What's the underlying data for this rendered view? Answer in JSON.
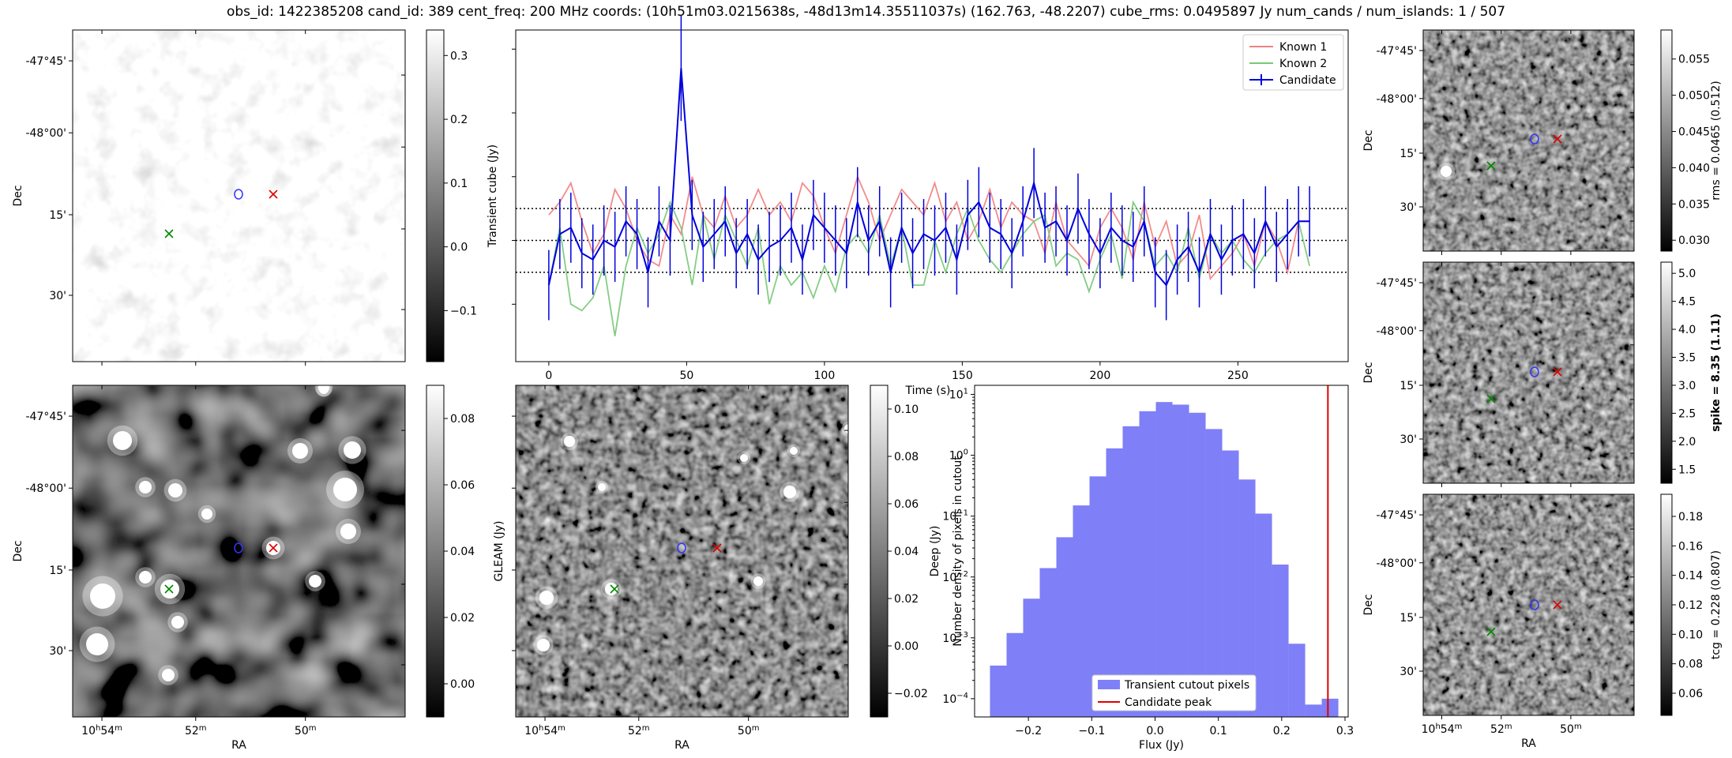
{
  "suptitle": "obs_id: 1422385208 cand_id: 389 cent_freq: 200 MHz coords: (10h51m03.0215638s, -48d13m14.35511037s) (162.763, -48.2207) cube_rms: 0.0495897 Jy num_cands / num_islands: 1 / 507",
  "sky": {
    "dec_ticks": [
      "-47°45'",
      "-48°00'",
      "15'",
      "30'"
    ],
    "ra_ticks": [
      "10h54m",
      "52m",
      "50m"
    ],
    "dec_label": "Dec",
    "ra_label": "RA"
  },
  "panels": {
    "transient": {
      "cbar_label": "Transient cube (Jy)",
      "cbar_ticks": [
        "0.3",
        "0.2",
        "0.1",
        "0.0",
        "−0.1"
      ],
      "cbar_range": [
        -0.18,
        0.34
      ]
    },
    "gleam": {
      "cbar_label": "GLEAM (Jy)",
      "cbar_ticks": [
        "0.08",
        "0.06",
        "0.04",
        "0.02",
        "0.00"
      ],
      "cbar_range": [
        -0.01,
        0.09
      ]
    },
    "deep": {
      "cbar_label": "Deep (Jy)",
      "cbar_ticks": [
        "0.10",
        "0.08",
        "0.06",
        "0.04",
        "0.02",
        "0.00",
        "−0.02"
      ],
      "cbar_range": [
        -0.03,
        0.11
      ]
    },
    "rms": {
      "cbar_label": "rms = 0.0465 (0.512)",
      "cbar_ticks": [
        "0.055",
        "0.050",
        "0.045",
        "0.040",
        "0.035",
        "0.030"
      ],
      "cbar_range": [
        0.0285,
        0.059
      ]
    },
    "spike": {
      "cbar_label": "spike = 8.35 (1.11)",
      "cbar_ticks": [
        "5.0",
        "4.5",
        "4.0",
        "3.5",
        "3.0",
        "2.5",
        "2.0",
        "1.5"
      ],
      "cbar_range": [
        1.25,
        5.2
      ]
    },
    "tcg": {
      "cbar_label": "tcg = 0.228 (0.807)",
      "cbar_ticks": [
        "0.18",
        "0.16",
        "0.14",
        "0.12",
        "0.10",
        "0.08",
        "0.06"
      ],
      "cbar_range": [
        0.045,
        0.195
      ]
    }
  },
  "chart_data": [
    {
      "type": "line",
      "title": "",
      "xlabel": "Time (s)",
      "ylabel": "",
      "xlim": [
        -12,
        290
      ],
      "ylim": [
        -0.19,
        0.33
      ],
      "x_ticks": [
        "0",
        "50",
        "100",
        "150",
        "200",
        "250"
      ],
      "hlines": [
        0.05,
        0.0,
        -0.05
      ],
      "legend": [
        "Known 1",
        "Known 2",
        "Candidate"
      ],
      "x": [
        0,
        4,
        8,
        12,
        16,
        20,
        24,
        28,
        32,
        36,
        40,
        44,
        48,
        52,
        56,
        60,
        64,
        68,
        72,
        76,
        80,
        84,
        88,
        92,
        96,
        100,
        104,
        108,
        112,
        116,
        120,
        124,
        128,
        132,
        136,
        140,
        144,
        148,
        152,
        156,
        160,
        164,
        168,
        172,
        176,
        180,
        184,
        188,
        192,
        196,
        200,
        204,
        208,
        212,
        216,
        220,
        224,
        228,
        232,
        236,
        240,
        244,
        248,
        252,
        256,
        260,
        264,
        268,
        272,
        276
      ],
      "series": [
        {
          "name": "Known 1",
          "color": "#f08080",
          "values": [
            0.04,
            0.06,
            0.09,
            0.03,
            -0.02,
            0.01,
            0.08,
            0.05,
            0.0,
            -0.03,
            -0.04,
            0.04,
            0.01,
            0.1,
            0.04,
            0.02,
            0.07,
            0.02,
            0.04,
            0.08,
            0.04,
            0.06,
            0.03,
            0.09,
            0.07,
            0.02,
            -0.02,
            0.04,
            0.1,
            0.06,
            0.0,
            0.04,
            0.08,
            0.06,
            0.04,
            0.09,
            0.03,
            0.06,
            0.0,
            0.03,
            0.08,
            0.02,
            0.06,
            0.04,
            0.03,
            -0.02,
            0.06,
            0.0,
            -0.02,
            -0.04,
            0.02,
            0.05,
            0.02,
            -0.03,
            0.06,
            -0.01,
            0.03,
            -0.04,
            -0.02,
            0.04,
            -0.06,
            -0.04,
            -0.02,
            0.01,
            -0.04,
            0.03,
            0.0,
            -0.05,
            0.03,
            0.03
          ]
        },
        {
          "name": "Known 2",
          "color": "#77c877",
          "values": [
            -0.07,
            0.02,
            -0.1,
            -0.11,
            -0.09,
            -0.04,
            -0.15,
            -0.04,
            0.02,
            -0.02,
            0.01,
            0.06,
            0.02,
            -0.07,
            0.04,
            -0.03,
            0.04,
            0.0,
            -0.04,
            0.02,
            -0.1,
            -0.04,
            -0.07,
            -0.05,
            -0.09,
            -0.04,
            -0.08,
            -0.01,
            0.01,
            -0.02,
            0.04,
            -0.04,
            0.02,
            -0.07,
            -0.07,
            0.0,
            -0.05,
            0.01,
            0.05,
            0.0,
            -0.03,
            -0.05,
            -0.02,
            0.01,
            0.03,
            0.04,
            -0.04,
            -0.02,
            -0.03,
            -0.08,
            -0.03,
            0.01,
            -0.06,
            0.06,
            0.03,
            -0.04,
            -0.02,
            -0.05,
            0.02,
            -0.06,
            0.01,
            -0.02,
            0.0,
            -0.03,
            -0.05,
            -0.02,
            0.0,
            0.01,
            0.03,
            -0.04
          ]
        },
        {
          "name": "Candidate",
          "color": "#0000dd",
          "err": 0.055,
          "values": [
            -0.07,
            0.01,
            0.02,
            -0.02,
            -0.03,
            0.0,
            -0.01,
            0.03,
            0.01,
            -0.05,
            0.03,
            0.0,
            0.27,
            0.04,
            -0.01,
            0.01,
            0.03,
            -0.02,
            0.01,
            -0.03,
            -0.01,
            0.0,
            0.02,
            -0.03,
            0.04,
            0.02,
            0.0,
            -0.02,
            0.06,
            0.0,
            0.03,
            -0.05,
            0.02,
            -0.02,
            0.01,
            0.0,
            0.02,
            -0.03,
            0.04,
            0.06,
            0.02,
            0.01,
            -0.02,
            0.03,
            0.09,
            0.02,
            0.03,
            0.0,
            0.05,
            0.01,
            -0.02,
            0.02,
            0.0,
            -0.01,
            0.03,
            -0.05,
            -0.07,
            -0.03,
            -0.01,
            -0.05,
            0.01,
            -0.03,
            0.0,
            0.01,
            -0.02,
            0.03,
            -0.01,
            0.01,
            0.03,
            0.03
          ]
        }
      ]
    },
    {
      "type": "bar",
      "title": "",
      "xlabel": "Flux (Jy)",
      "ylabel": "Number density of pixels in cutout",
      "yscale": "log",
      "xlim": [
        -0.285,
        0.305
      ],
      "ylim_log10": [
        -4.3,
        1.15
      ],
      "x_ticks": [
        "−0.2",
        "−0.1",
        "0.0",
        "0.1",
        "0.2",
        "0.3"
      ],
      "y_ticks": [
        "10^1",
        "10^0",
        "10^-1",
        "10^-2",
        "10^-3",
        "10^-4"
      ],
      "bin_width": 0.0262,
      "bin_left": -0.2607,
      "values": [
        0.00035,
        0.0012,
        0.0044,
        0.014,
        0.045,
        0.15,
        0.45,
        1.3,
        3.0,
        5.3,
        7.5,
        6.8,
        5.0,
        2.7,
        1.2,
        0.4,
        0.11,
        0.016,
        0.0008,
        8e-05,
        0.0001
      ],
      "candidate_peak": 0.273,
      "legend": [
        "Transient cutout pixels",
        "Candidate peak"
      ]
    }
  ]
}
